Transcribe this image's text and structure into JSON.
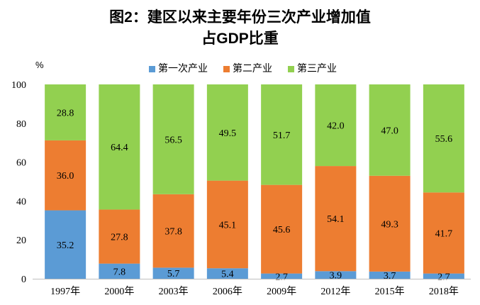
{
  "chart_data": {
    "type": "bar",
    "stacked": true,
    "title": "图2：建区以来主要年份三次产业增加值",
    "subtitle": "占GDP比重",
    "ylabel": "%",
    "ylim": [
      0,
      100
    ],
    "yticks": [
      0,
      20,
      40,
      60,
      80,
      100
    ],
    "grid": false,
    "legend_position": "top",
    "categories": [
      "1997年",
      "2000年",
      "2003年",
      "2006年",
      "2009年",
      "2012年",
      "2015年",
      "2018年"
    ],
    "series": [
      {
        "name": "第一次产业",
        "color": "#5B9BD5",
        "values": [
          35.2,
          7.8,
          5.7,
          5.4,
          2.7,
          3.9,
          3.7,
          2.7
        ]
      },
      {
        "name": "第二产业",
        "color": "#ED7D31",
        "values": [
          36.0,
          27.8,
          37.8,
          45.1,
          45.6,
          54.1,
          49.3,
          41.7
        ]
      },
      {
        "name": "第三产业",
        "color": "#92D050",
        "values": [
          28.8,
          64.4,
          56.5,
          49.5,
          51.7,
          42.0,
          47.0,
          55.6
        ]
      }
    ]
  }
}
